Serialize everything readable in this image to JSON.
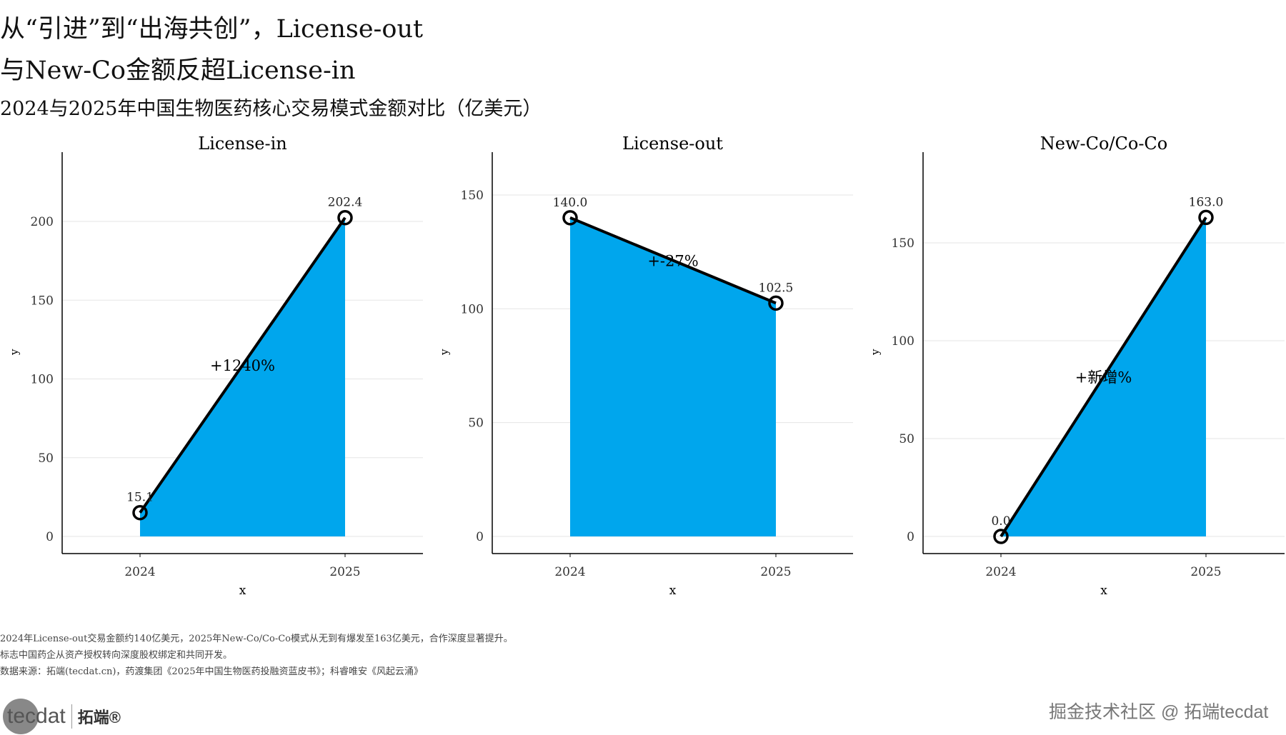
{
  "title_line1": "从“引进”到“出海共创”，License-out",
  "title_line2": "与New-Co金额反超License-in",
  "subtitle": "2024与2025年中国生物医药核心交易模式金额对比（亿美元）",
  "notes": [
    "2024年License-out交易金额约140亿美元，2025年New-Co/Co-Co模式从无到有爆发至163亿美元，合作深度显著提升。",
    "标志中国药企从资产授权转向深度股权绑定和共同开发。",
    "数据来源：拓端(tecdat.cn)，药渡集团《2025年中国生物医药投融资蓝皮书》；科睿唯安《风起云涌》"
  ],
  "logo": {
    "text": "tecdat",
    "cn": "拓端®"
  },
  "watermark": "掘金技术社区 @ 拓端tecdat",
  "colors": {
    "fill": "#00a6ed",
    "line": "#000000",
    "grid": "#e5e5e5"
  },
  "chart_data": [
    {
      "type": "area",
      "title": "License-in",
      "x": [
        "2024",
        "2025"
      ],
      "values": [
        15.1,
        202.4
      ],
      "labels": [
        "15.1",
        "202.4"
      ],
      "annotation": "+1240%",
      "xlabel": "x",
      "ylabel": "y",
      "ylim": [
        0,
        220
      ],
      "yticks": [
        0,
        50,
        100,
        150,
        200
      ]
    },
    {
      "type": "area",
      "title": "License-out",
      "x": [
        "2024",
        "2025"
      ],
      "values": [
        140.0,
        102.5
      ],
      "labels": [
        "140.0",
        "102.5"
      ],
      "annotation": "+-27%",
      "xlabel": "x",
      "ylabel": "y",
      "ylim": [
        0,
        155
      ],
      "yticks": [
        0,
        50,
        100,
        150
      ]
    },
    {
      "type": "area",
      "title": "New-Co/Co-Co",
      "x": [
        "2024",
        "2025"
      ],
      "values": [
        0.0,
        163.0
      ],
      "labels": [
        "0.0",
        "163.0"
      ],
      "annotation": "+新增%",
      "xlabel": "x",
      "ylabel": "y",
      "ylim": [
        0,
        180
      ],
      "yticks": [
        0,
        50,
        100,
        150
      ]
    }
  ]
}
